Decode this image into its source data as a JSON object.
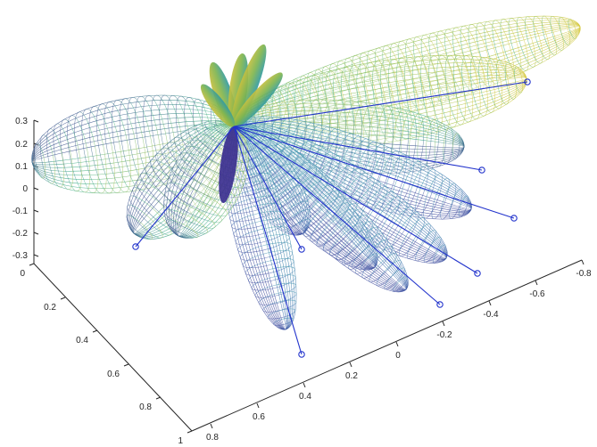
{
  "chart_data": {
    "type": "surface-wireframe-3d",
    "title": "",
    "xlabel": "",
    "ylabel": "",
    "zlabel": "",
    "grid": false,
    "colormap": [
      "#3b2f8f",
      "#3f6fb0",
      "#2f9aa5",
      "#3fb08a",
      "#8fbf4a",
      "#d4c73a"
    ],
    "stem_color": "#2233cc",
    "axes": {
      "x_ticks": [
        "-0.8",
        "-0.6",
        "-0.4",
        "-0.2",
        "0",
        "0.2",
        "0.4",
        "0.6",
        "0.8"
      ],
      "y_ticks": [
        "0",
        "0.2",
        "0.4",
        "0.6",
        "0.8",
        "1"
      ],
      "z_ticks": [
        "0.3",
        "0.2",
        "0.1",
        "0",
        "-0.1",
        "-0.2",
        "-0.3"
      ],
      "x_range": [
        -0.8,
        0.8
      ],
      "y_range": [
        0,
        1
      ],
      "z_range": [
        -0.3,
        0.3
      ]
    },
    "lobes": [
      {
        "id": "lobe-left-wide",
        "mesh": true
      },
      {
        "id": "lobe-left-inner",
        "mesh": true
      },
      {
        "id": "lobe-upper-right-far",
        "mesh": true
      },
      {
        "id": "lobe-upper-right",
        "mesh": true
      },
      {
        "id": "lobe-right-1",
        "mesh": true
      },
      {
        "id": "lobe-right-2",
        "mesh": true
      },
      {
        "id": "lobe-right-3",
        "mesh": true
      },
      {
        "id": "lobe-right-4",
        "mesh": true
      },
      {
        "id": "lobe-down-1",
        "mesh": true
      },
      {
        "id": "lobe-down-2",
        "mesh": true
      },
      {
        "id": "lobe-down-long",
        "mesh": true
      },
      {
        "id": "lobe-down-left",
        "mesh": true
      },
      {
        "id": "petal-1",
        "mesh": false
      },
      {
        "id": "petal-2",
        "mesh": false
      },
      {
        "id": "petal-3",
        "mesh": false
      },
      {
        "id": "petal-4",
        "mesh": false
      },
      {
        "id": "petal-5",
        "mesh": false
      },
      {
        "id": "petal-6",
        "mesh": false
      }
    ],
    "stems": [
      {
        "id": "stem-1"
      },
      {
        "id": "stem-2"
      },
      {
        "id": "stem-3"
      },
      {
        "id": "stem-4"
      },
      {
        "id": "stem-5"
      },
      {
        "id": "stem-6"
      },
      {
        "id": "stem-7"
      },
      {
        "id": "stem-8"
      }
    ]
  }
}
